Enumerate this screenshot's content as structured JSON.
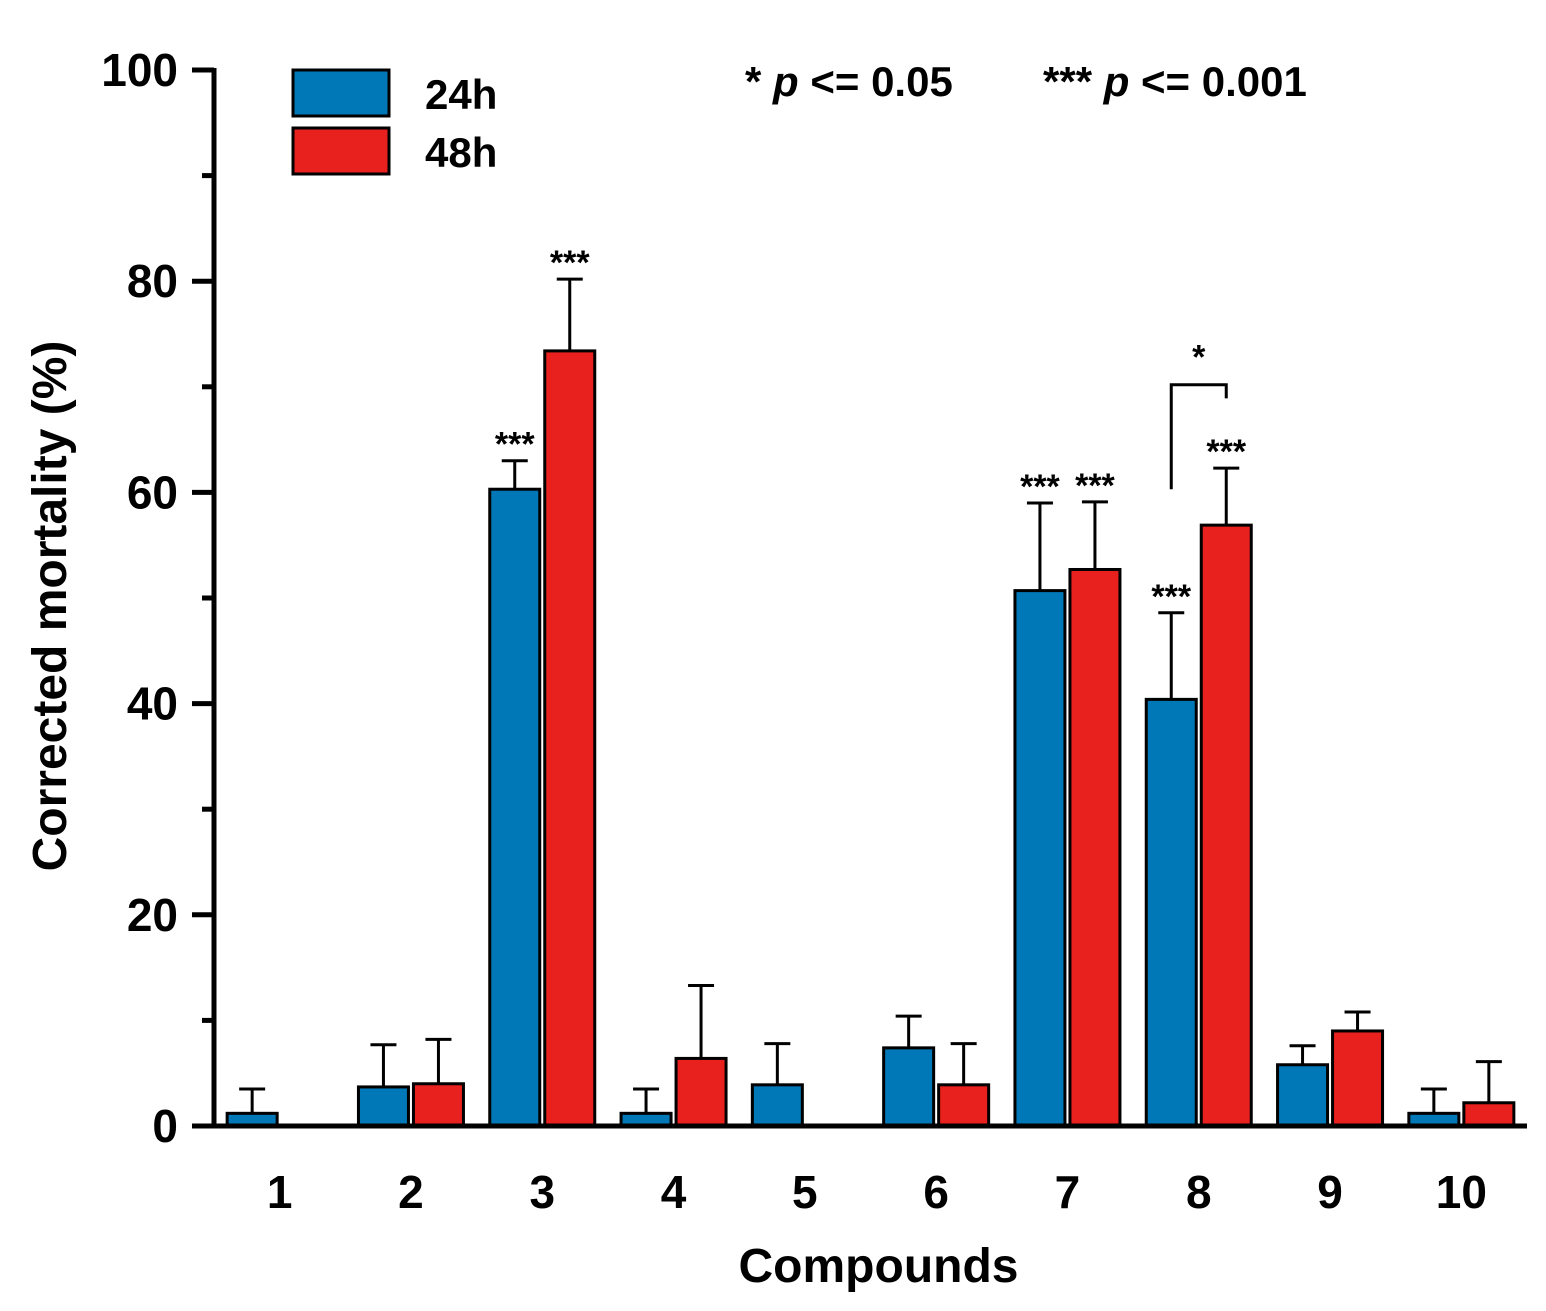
{
  "chart_data": {
    "type": "bar",
    "title": "",
    "xlabel": "Compounds",
    "ylabel": "Corrected mortality (%)",
    "ylim": [
      0,
      100
    ],
    "yticks": [
      "0",
      "20",
      "40",
      "60",
      "80",
      "100"
    ],
    "categories": [
      "1",
      "2",
      "3",
      "4",
      "5",
      "6",
      "7",
      "8",
      "9",
      "10"
    ],
    "series": [
      {
        "name": "24h",
        "color": "#0077b6",
        "values": [
          1.2,
          3.7,
          60.3,
          1.2,
          3.9,
          7.4,
          50.7,
          40.4,
          5.8,
          1.2
        ],
        "errors": [
          2.3,
          4.0,
          2.7,
          2.3,
          3.9,
          3.0,
          8.3,
          8.2,
          1.8,
          2.3
        ],
        "significance": [
          "",
          "",
          "***",
          "",
          "",
          "",
          "***",
          "***",
          "",
          ""
        ]
      },
      {
        "name": "48h",
        "color": "#e8211f",
        "values": [
          0,
          4.0,
          73.4,
          6.4,
          0,
          3.9,
          52.7,
          56.9,
          9.0,
          2.2
        ],
        "errors": [
          0,
          4.2,
          6.8,
          6.9,
          0,
          3.9,
          6.4,
          5.4,
          1.8,
          3.9
        ],
        "significance": [
          "",
          "",
          "***",
          "",
          "",
          "",
          "***",
          "***",
          "",
          ""
        ]
      }
    ],
    "comparison": {
      "category": "8",
      "label": "*",
      "bracket_base": 60.3,
      "bracket_top": 70.2
    },
    "legend": {
      "position": "top-left",
      "entries": [
        "24h",
        "48h"
      ]
    },
    "annotations": [
      {
        "symbol": "*",
        "p": "p",
        "rest": " <= 0.05"
      },
      {
        "symbol": "***",
        "p": "p",
        "rest": " <= 0.001"
      }
    ]
  }
}
